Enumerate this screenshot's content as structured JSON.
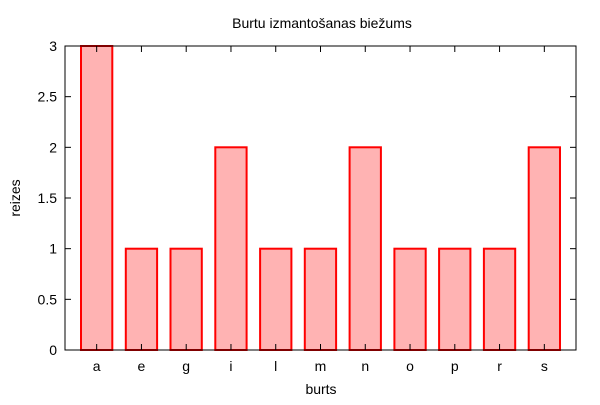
{
  "chart_data": {
    "type": "bar",
    "title": "Burtu izmantošanas biežums",
    "xlabel": "burts",
    "ylabel": "reizes",
    "categories": [
      "a",
      "e",
      "g",
      "i",
      "l",
      "m",
      "n",
      "o",
      "p",
      "r",
      "s"
    ],
    "values": [
      3,
      1,
      1,
      2,
      1,
      1,
      2,
      1,
      1,
      1,
      2
    ],
    "ylim": [
      0,
      3
    ],
    "yticks": [
      0,
      0.5,
      1,
      1.5,
      2,
      2.5,
      3
    ],
    "ytick_labels": [
      "0",
      "0.5",
      "1",
      "1.5",
      "2",
      "2.5",
      "3"
    ],
    "grid": false,
    "colors": {
      "bar_fill": "#ffb3b3",
      "bar_stroke": "#ff0000",
      "axis": "#000000"
    }
  }
}
